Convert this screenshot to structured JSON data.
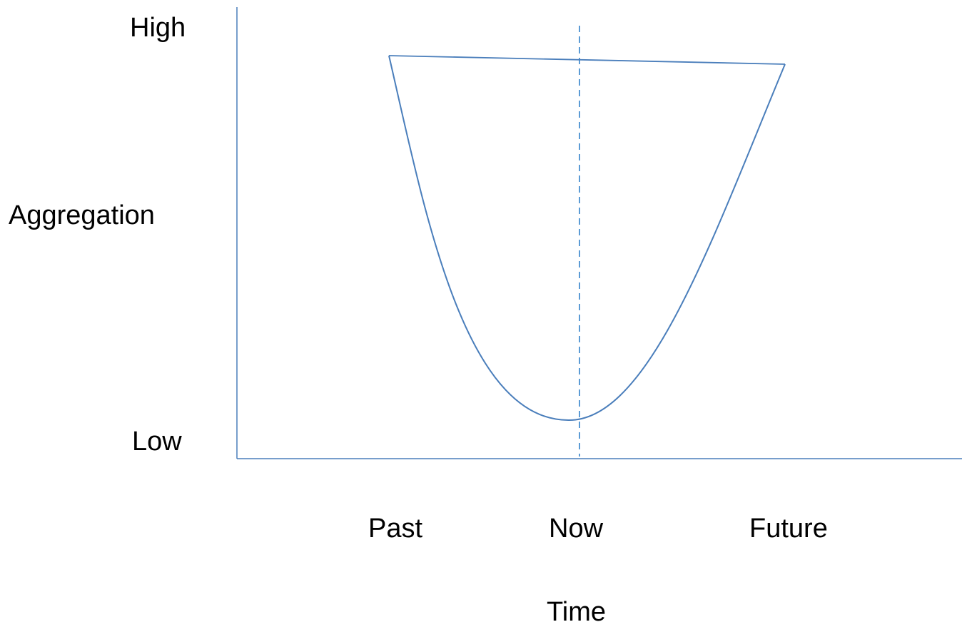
{
  "y_axis": {
    "label": "Aggregation",
    "high_label": "High",
    "low_label": "Low"
  },
  "x_axis": {
    "label": "Time",
    "ticks": [
      "Past",
      "Now",
      "Future"
    ]
  },
  "colors": {
    "line": "#4a7ebb",
    "dashed": "#5b9bd5",
    "text": "#000000"
  }
}
